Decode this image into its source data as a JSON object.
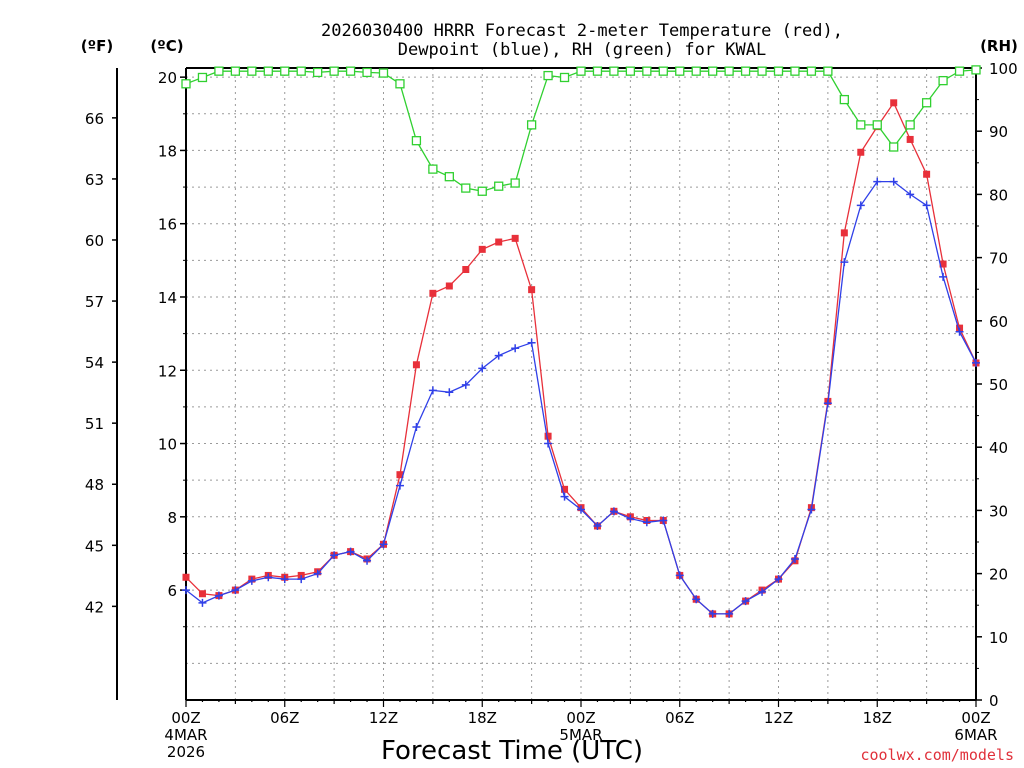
{
  "chart_data": {
    "type": "line",
    "title": "2026030400 HRRR Forecast 2-meter Temperature (red),",
    "subtitle": "Dewpoint (blue), RH (green) for KWAL",
    "xlabel": "Forecast Time (UTC)",
    "units": {
      "fahrenheit": "(ºF)",
      "celsius": "(ºC)",
      "rh": "(RH)"
    },
    "xlim": [
      0,
      48
    ],
    "ylim_c": [
      3,
      20.25
    ],
    "ylim_rh": [
      0,
      100
    ],
    "x_ticks": [
      {
        "x": 0,
        "lines": [
          "00Z",
          "4MAR",
          "2026"
        ]
      },
      {
        "x": 6,
        "lines": [
          "06Z"
        ]
      },
      {
        "x": 12,
        "lines": [
          "12Z"
        ]
      },
      {
        "x": 18,
        "lines": [
          "18Z"
        ]
      },
      {
        "x": 24,
        "lines": [
          "00Z",
          "5MAR"
        ]
      },
      {
        "x": 30,
        "lines": [
          "06Z"
        ]
      },
      {
        "x": 36,
        "lines": [
          "12Z"
        ]
      },
      {
        "x": 42,
        "lines": [
          "18Z"
        ]
      },
      {
        "x": 48,
        "lines": [
          "00Z",
          "6MAR"
        ]
      }
    ],
    "yticks_c": [
      6,
      8,
      10,
      12,
      14,
      16,
      18,
      20
    ],
    "yticks_f": [
      {
        "c": 5.556,
        "label": "42"
      },
      {
        "c": 7.222,
        "label": "45"
      },
      {
        "c": 8.889,
        "label": "48"
      },
      {
        "c": 10.556,
        "label": "51"
      },
      {
        "c": 12.222,
        "label": "54"
      },
      {
        "c": 13.889,
        "label": "57"
      },
      {
        "c": 15.556,
        "label": "60"
      },
      {
        "c": 17.222,
        "label": "63"
      },
      {
        "c": 18.889,
        "label": "66"
      }
    ],
    "yticks_rh": [
      0,
      10,
      20,
      30,
      40,
      50,
      60,
      70,
      80,
      90,
      100
    ],
    "series": [
      {
        "name": "Temperature",
        "unit": "C",
        "color": "#e8303a",
        "marker": "square",
        "values": [
          6.35,
          5.9,
          5.85,
          6.0,
          6.3,
          6.4,
          6.35,
          6.4,
          6.5,
          6.95,
          7.05,
          6.85,
          7.25,
          9.15,
          12.15,
          14.1,
          14.3,
          14.75,
          15.3,
          15.5,
          15.6,
          14.2,
          10.2,
          8.75,
          8.25,
          7.75,
          8.15,
          8.0,
          7.9,
          7.9,
          6.4,
          5.75,
          5.35,
          5.35,
          5.7,
          6.0,
          6.3,
          6.8,
          8.25,
          11.15,
          15.75,
          17.95,
          18.65,
          19.3,
          18.3,
          17.35,
          14.9,
          13.15,
          12.2
        ]
      },
      {
        "name": "Dewpoint",
        "unit": "C",
        "color": "#3040e8",
        "marker": "plus",
        "values": [
          6.0,
          5.65,
          5.85,
          6.0,
          6.25,
          6.35,
          6.3,
          6.3,
          6.45,
          6.95,
          7.05,
          6.8,
          7.25,
          8.85,
          10.45,
          11.45,
          11.4,
          11.6,
          12.05,
          12.4,
          12.6,
          12.75,
          10.0,
          8.55,
          8.2,
          7.75,
          8.15,
          7.95,
          7.85,
          7.9,
          6.4,
          5.75,
          5.35,
          5.35,
          5.7,
          5.95,
          6.3,
          6.85,
          8.2,
          11.1,
          14.95,
          16.5,
          17.15,
          17.15,
          16.8,
          16.5,
          14.55,
          13.05,
          12.2
        ]
      },
      {
        "name": "RH",
        "unit": "%",
        "color": "#30d030",
        "marker": "open-square",
        "values": [
          97.5,
          98.5,
          99.5,
          99.5,
          99.5,
          99.5,
          99.5,
          99.5,
          99.3,
          99.5,
          99.5,
          99.3,
          99.2,
          97.5,
          88.5,
          84,
          82.8,
          81,
          80.5,
          81.3,
          81.8,
          91,
          98.8,
          98.5,
          99.5,
          99.5,
          99.5,
          99.5,
          99.5,
          99.5,
          99.5,
          99.5,
          99.5,
          99.5,
          99.5,
          99.5,
          99.5,
          99.5,
          99.5,
          99.5,
          95,
          91,
          91,
          87.5,
          91,
          94.5,
          98,
          99.5,
          99.7
        ]
      }
    ]
  },
  "credit": "coolwx.com/models"
}
